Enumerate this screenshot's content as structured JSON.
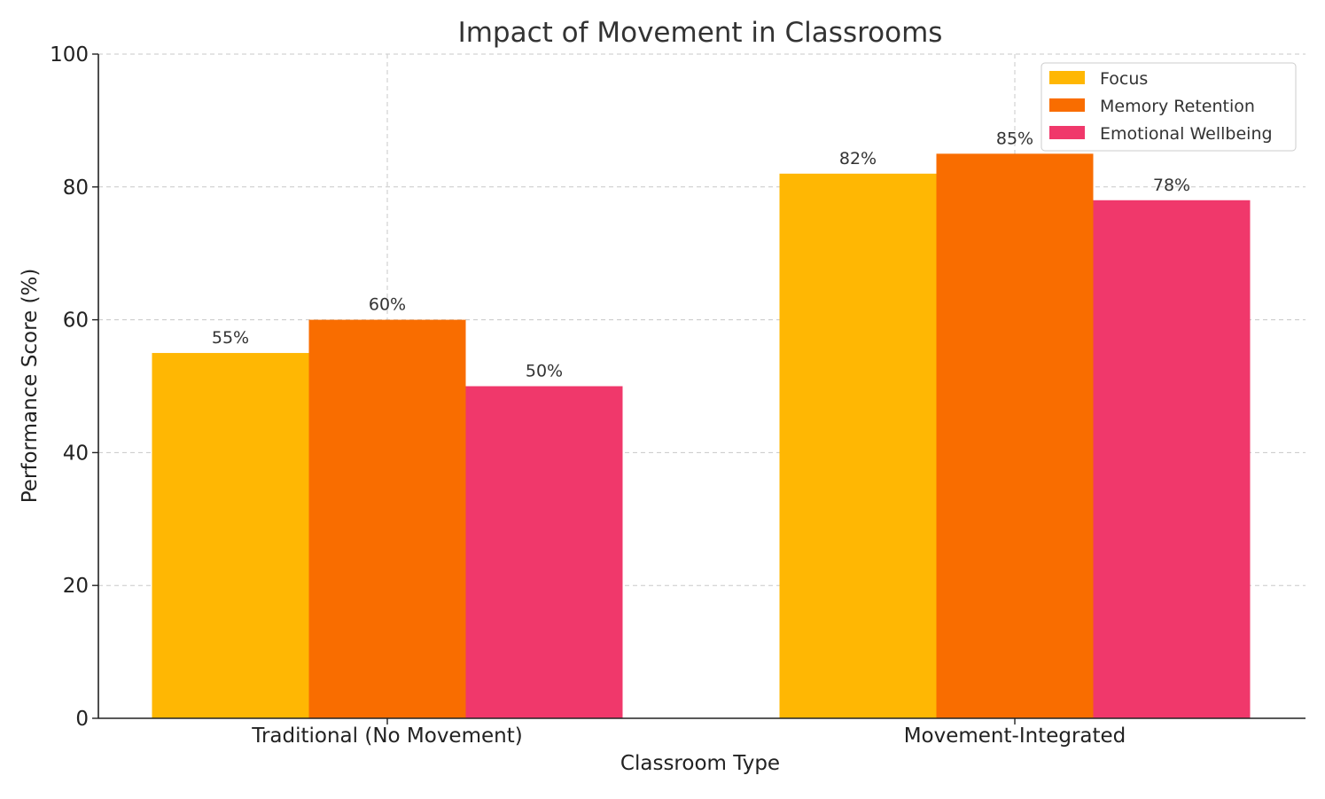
{
  "chart_data": {
    "type": "bar",
    "title": "Impact of Movement in Classrooms",
    "xlabel": "Classroom Type",
    "ylabel": "Performance Score (%)",
    "categories": [
      "Traditional (No Movement)",
      "Movement-Integrated"
    ],
    "series": [
      {
        "name": "Focus",
        "values": [
          55,
          82
        ],
        "labels": [
          "55%",
          "82%"
        ],
        "color": "#FFB703"
      },
      {
        "name": "Memory Retention",
        "values": [
          60,
          85
        ],
        "labels": [
          "60%",
          "85%"
        ],
        "color": "#F96D00"
      },
      {
        "name": "Emotional Wellbeing",
        "values": [
          50,
          78
        ],
        "labels": [
          "50%",
          "78%"
        ],
        "color": "#F0386B"
      }
    ],
    "ylim": [
      0,
      100
    ],
    "yticks": [
      0,
      20,
      40,
      60,
      80,
      100
    ],
    "grid": true,
    "legend_position": "top-right"
  }
}
